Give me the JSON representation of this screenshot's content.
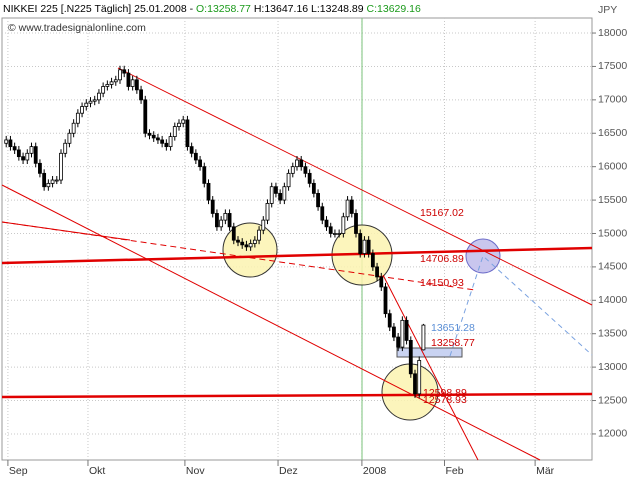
{
  "chart_data": {
    "type": "candlestick",
    "title": "NIKKEI 225 [.N225 Täglich] 25.01.2008 -",
    "ohlc_labels": [
      {
        "label": "O:13258.77",
        "color": "#1a9a1a"
      },
      {
        "label": "H:13647.16",
        "color": "#000000"
      },
      {
        "label": "L:13248.89",
        "color": "#000000"
      },
      {
        "label": "C:13629.16",
        "color": "#1a9a1a"
      }
    ],
    "watermark": "© www.tradesignalonline.com",
    "y_unit": "JPY",
    "up_color": "#ffffff",
    "down_color": "#000000",
    "grid": true,
    "x": [
      1,
      2,
      3,
      4,
      5,
      6,
      7,
      8,
      9,
      10,
      11,
      12,
      13,
      14,
      15,
      16,
      17,
      18,
      19,
      20,
      21,
      22,
      23,
      24,
      25,
      26,
      27,
      28,
      29,
      30,
      31,
      32,
      33,
      34,
      35,
      36,
      37,
      38,
      39,
      40,
      41,
      42,
      43,
      44,
      45,
      46,
      47,
      48,
      49,
      50,
      51,
      52,
      53,
      54,
      55,
      56,
      57,
      58,
      59,
      60,
      61,
      62,
      63,
      64,
      65,
      66,
      67,
      68,
      69,
      70,
      71,
      72,
      73,
      74,
      75,
      76,
      77,
      78,
      79,
      80,
      81,
      82,
      83,
      84,
      85,
      86,
      87,
      88,
      89,
      90,
      91,
      92,
      93,
      94,
      95,
      96,
      97,
      98,
      99,
      100
    ],
    "open": [
      16350,
      16400,
      16300,
      16250,
      16150,
      16100,
      16200,
      16300,
      16050,
      15900,
      15700,
      15750,
      15800,
      15800,
      16200,
      16350,
      16500,
      16650,
      16800,
      16900,
      16950,
      16980,
      17000,
      17100,
      17200,
      17230,
      17270,
      17300,
      17450,
      17400,
      17200,
      17300,
      17150,
      17000,
      16500,
      16470,
      16430,
      16400,
      16350,
      16300,
      16450,
      16600,
      16650,
      16700,
      16300,
      16200,
      16100,
      16000,
      15750,
      15500,
      15300,
      15100,
      15200,
      15300,
      15100,
      14900,
      14870,
      14830,
      14800,
      14850,
      14900,
      15050,
      15200,
      15450,
      15700,
      15600,
      15500,
      15700,
      15900,
      16000,
      16100,
      16000,
      15900,
      15750,
      15600,
      15400,
      15200,
      15100,
      15000,
      15000,
      15000,
      15250,
      15500,
      15300,
      15000,
      14700,
      14900,
      14700,
      14500,
      14350,
      14200,
      13800,
      13600,
      13450,
      13300,
      13700,
      13400,
      12900,
      12600,
      13258.77
    ],
    "high": [
      16460,
      16460,
      16360,
      16310,
      16210,
      16260,
      16360,
      16360,
      16110,
      15960,
      15810,
      15860,
      15860,
      16260,
      16410,
      16560,
      16710,
      16860,
      16960,
      17010,
      17040,
      17060,
      17160,
      17260,
      17290,
      17330,
      17360,
      17510,
      17510,
      17460,
      17360,
      17360,
      17210,
      17060,
      16560,
      16530,
      16490,
      16460,
      16410,
      16510,
      16660,
      16710,
      16760,
      16760,
      16360,
      16260,
      16160,
      16060,
      15810,
      15560,
      15360,
      15260,
      15360,
      15360,
      15160,
      14960,
      14930,
      14890,
      14910,
      14960,
      15110,
      15260,
      15510,
      15760,
      15760,
      15660,
      15760,
      15960,
      16060,
      16160,
      16160,
      16060,
      15960,
      15810,
      15660,
      15460,
      15260,
      15160,
      15060,
      15060,
      15310,
      15560,
      15560,
      15360,
      15060,
      14960,
      14960,
      14760,
      14560,
      14410,
      14260,
      13860,
      13660,
      13510,
      13760,
      13760,
      13460,
      12960,
      13160,
      13647.16
    ],
    "low": [
      16290,
      16240,
      16190,
      16090,
      16040,
      16040,
      16140,
      15990,
      15840,
      15640,
      15640,
      15690,
      15740,
      15740,
      16140,
      16290,
      16440,
      16590,
      16740,
      16840,
      16890,
      16920,
      16940,
      17040,
      17140,
      17170,
      17210,
      17240,
      17340,
      17140,
      17140,
      17090,
      16940,
      16440,
      16410,
      16370,
      16340,
      16290,
      16240,
      16240,
      16390,
      16540,
      16590,
      16240,
      16140,
      16040,
      15940,
      15690,
      15440,
      15240,
      15040,
      15040,
      15140,
      15040,
      14840,
      14810,
      14770,
      14740,
      14740,
      14790,
      14840,
      14990,
      15140,
      15390,
      15540,
      15440,
      15440,
      15640,
      15840,
      15940,
      15940,
      15840,
      15690,
      15540,
      15340,
      15140,
      15040,
      14940,
      14940,
      14940,
      14940,
      15190,
      15240,
      14940,
      14640,
      14640,
      14640,
      14440,
      14290,
      14140,
      13740,
      13540,
      13390,
      13240,
      13240,
      13340,
      12840,
      12540,
      12540,
      13248.89
    ],
    "close": [
      16400,
      16300,
      16250,
      16150,
      16100,
      16200,
      16300,
      16050,
      15900,
      15700,
      15750,
      15800,
      15800,
      16200,
      16350,
      16500,
      16650,
      16800,
      16900,
      16950,
      16980,
      17000,
      17100,
      17200,
      17230,
      17270,
      17300,
      17450,
      17400,
      17200,
      17300,
      17150,
      17000,
      16500,
      16470,
      16430,
      16400,
      16350,
      16300,
      16450,
      16600,
      16650,
      16700,
      16300,
      16200,
      16100,
      16000,
      15750,
      15500,
      15300,
      15100,
      15200,
      15300,
      15100,
      14900,
      14870,
      14830,
      14800,
      14850,
      14900,
      15050,
      15200,
      15450,
      15700,
      15600,
      15500,
      15700,
      15900,
      16000,
      16100,
      16000,
      15900,
      15750,
      15600,
      15400,
      15200,
      15100,
      15000,
      15000,
      15000,
      15250,
      15500,
      15300,
      15000,
      14700,
      14900,
      14700,
      14500,
      14350,
      14200,
      13800,
      13600,
      13450,
      13300,
      13700,
      13400,
      12900,
      12600,
      13100,
      13629.16
    ],
    "xlim": [
      0,
      140
    ],
    "xticks": [
      {
        "value": 1.4,
        "label": "Sep"
      },
      {
        "value": 20.4,
        "label": "Okt"
      },
      {
        "value": 43.4,
        "label": "Nov"
      },
      {
        "value": 65.5,
        "label": "Dez"
      },
      {
        "value": 85.4,
        "label": "2008"
      },
      {
        "value": 105,
        "label": "Feb"
      },
      {
        "value": 126.5,
        "label": "Mär"
      }
    ],
    "ylim": [
      11610,
      18225
    ],
    "yticks": [
      12000,
      12500,
      13000,
      13500,
      14000,
      14500,
      15000,
      15500,
      16000,
      16500,
      17000,
      17500,
      18000
    ],
    "annotations": [
      {
        "label": "15167.02",
        "color": "#cc0000"
      },
      {
        "label": "14706.89",
        "color": "#cc0000"
      },
      {
        "label": "14150.93",
        "color": "#cc0000"
      },
      {
        "label": "13651.28",
        "color": "#5b8fd6"
      },
      {
        "label": "13258.77",
        "color": "#cc0000"
      },
      {
        "label": "12598.89",
        "color": "#cc0000"
      },
      {
        "label": "12578.93",
        "color": "#cc0000"
      }
    ]
  }
}
